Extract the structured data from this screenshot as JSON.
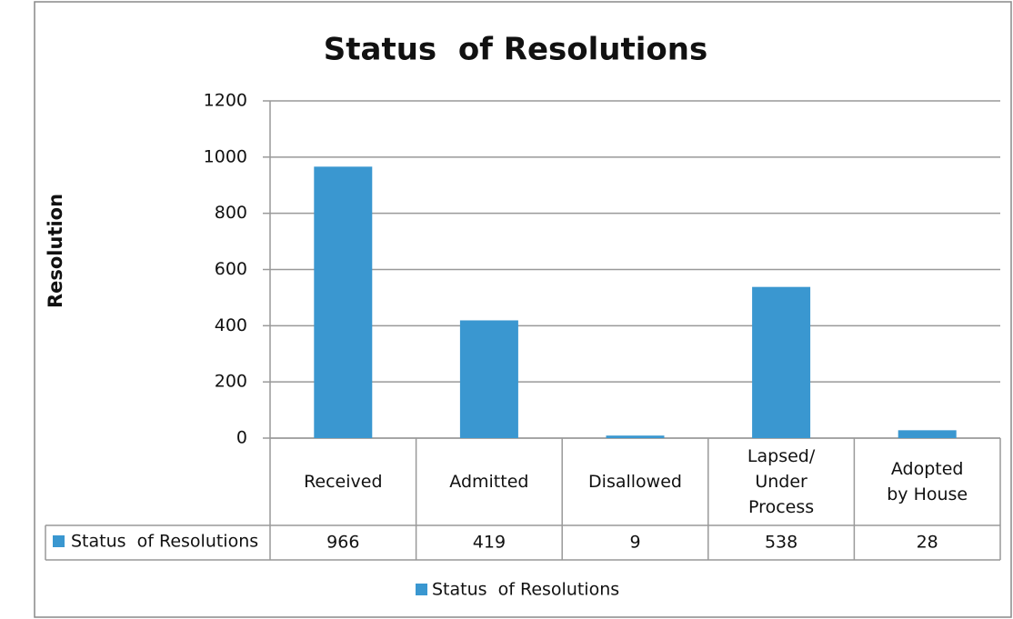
{
  "chart_data": {
    "type": "bar",
    "title": "Status  of Resolutions",
    "y_label": "Resolution",
    "categories": [
      "Received",
      "Admitted",
      "Disallowed",
      "Lapsed/ Under Process",
      "Adopted by House"
    ],
    "series": [
      {
        "name": "Status  of Resolutions",
        "color": "#3a97d0",
        "values": [
          966,
          419,
          9,
          538,
          28
        ]
      }
    ],
    "ylim": [
      0,
      1200
    ],
    "yticks": [
      0,
      200,
      400,
      600,
      800,
      1000,
      1200
    ],
    "grid": true,
    "legend": "bottom",
    "data_table": true
  }
}
